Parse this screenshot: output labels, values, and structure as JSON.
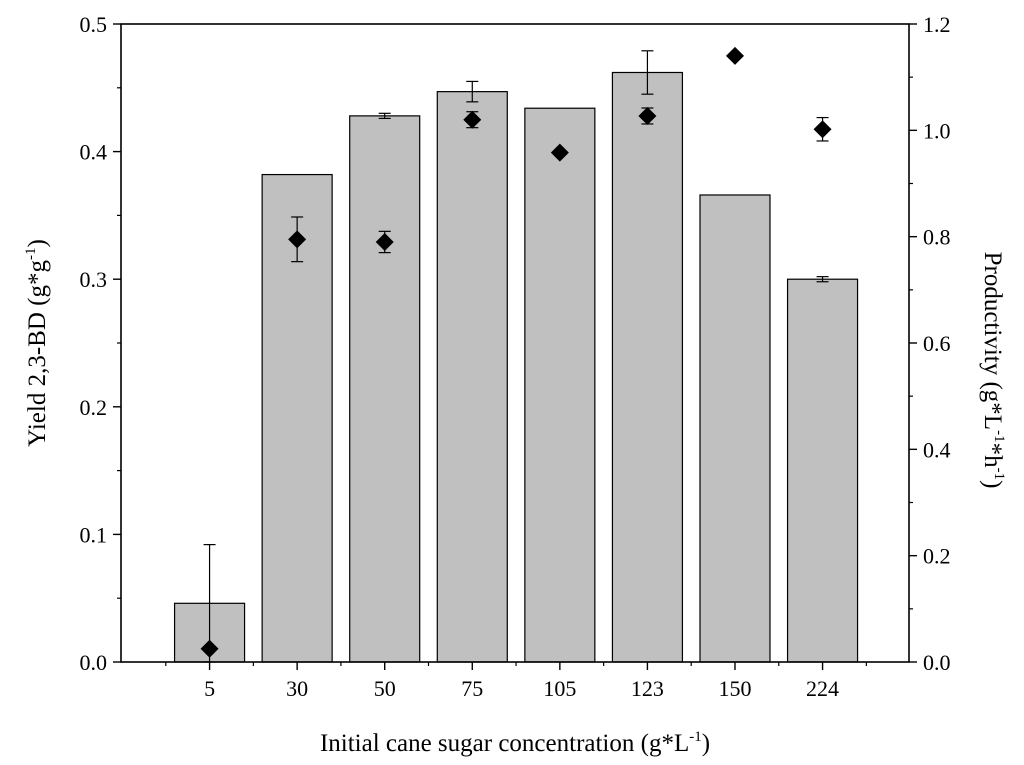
{
  "chart_data": {
    "type": "bar",
    "categories": [
      "5",
      "30",
      "50",
      "75",
      "105",
      "123",
      "150",
      "224"
    ],
    "xlabel": {
      "main": "Initial cane sugar concentration (g*L",
      "sup": "-1",
      "tail": ")"
    },
    "left_axis": {
      "label": {
        "main": "Yield 2,3-BD (g*g",
        "sup": "-1",
        "tail": ")"
      },
      "ylim": [
        0,
        0.5
      ],
      "ticks": [
        "0.0",
        "0.1",
        "0.2",
        "0.3",
        "0.4",
        "0.5"
      ]
    },
    "right_axis": {
      "label_parts": [
        "Productivity (g*L",
        "-1",
        "*h",
        "-1",
        ")"
      ],
      "ylim": [
        0,
        1.2
      ],
      "ticks": [
        "0.0",
        "0.2",
        "0.4",
        "0.6",
        "0.8",
        "1.0",
        "1.2"
      ]
    },
    "series": [
      {
        "type": "bar",
        "axis": "left",
        "values": [
          0.046,
          0.382,
          0.428,
          0.447,
          0.434,
          0.462,
          0.366,
          0.3
        ],
        "error": [
          0.046,
          0,
          0.002,
          0.008,
          0,
          0.017,
          0,
          0.002
        ],
        "color": "#c0c0c0"
      },
      {
        "type": "scatter",
        "axis": "right",
        "marker": "diamond",
        "values": [
          0.025,
          0.795,
          0.79,
          1.02,
          0.958,
          1.027,
          1.14,
          1.002
        ],
        "error": [
          0,
          0.042,
          0.02,
          0.015,
          0,
          0.015,
          0,
          0.022
        ],
        "color": "#000000"
      }
    ],
    "grid": false,
    "legend": "none"
  }
}
